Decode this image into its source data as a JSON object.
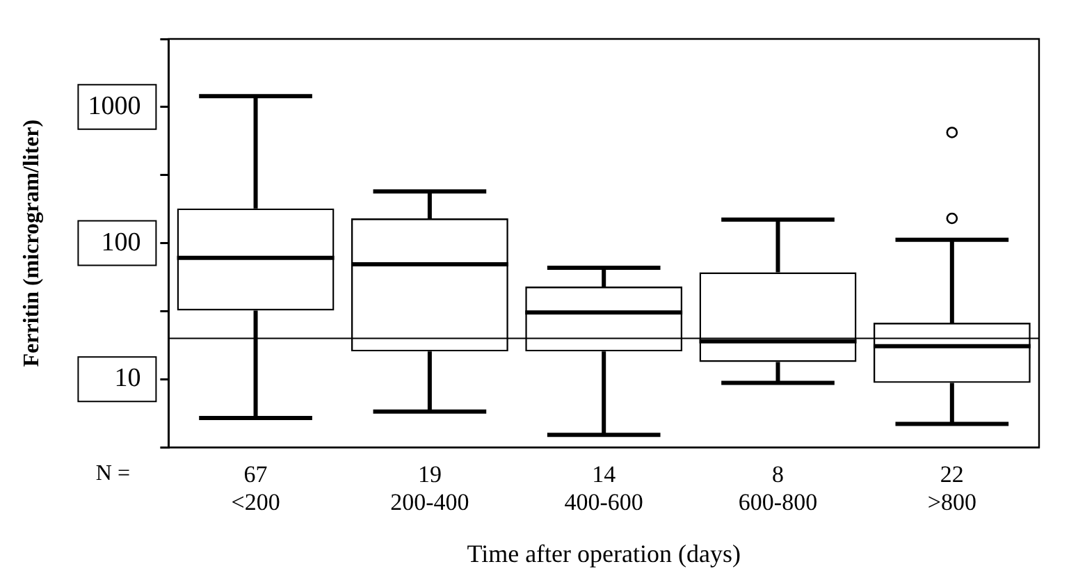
{
  "chart_data": {
    "type": "box",
    "xlabel": "Time after operation (days)",
    "ylabel": "Ferritin (microgram/liter)",
    "categories": [
      "67\n<200",
      "19\n200-400",
      "14\n400-600",
      "8\n600-800",
      "22\n>800"
    ],
    "boxes": [
      {
        "low": 5.2,
        "q1": 32,
        "median": 78,
        "q3": 180,
        "high": 1200
      },
      {
        "low": 5.8,
        "q1": 16,
        "median": 70,
        "q3": 152,
        "high": 240
      },
      {
        "low": 3.9,
        "q1": 16,
        "median": 31,
        "q3": 48,
        "high": 66
      },
      {
        "low": 9.4,
        "q1": 13.4,
        "median": 19,
        "q3": 61,
        "high": 149
      },
      {
        "low": 4.7,
        "q1": 9.4,
        "median": 17.5,
        "q3": 26,
        "high": 106,
        "outliers": [
          152,
          650
        ]
      }
    ],
    "log": true,
    "ylim": [
      3.162,
      3162
    ],
    "yticks": [
      {
        "value": 3.162,
        "label": null
      },
      10,
      {
        "value": 31.62,
        "label": null
      },
      100,
      {
        "value": 316.2,
        "label": null
      },
      1000,
      {
        "value": 3162,
        "label": null
      }
    ],
    "ref_lines": [
      {
        "axis": "y",
        "value": 20
      }
    ],
    "annotations": [
      "N ="
    ],
    "grid": false,
    "legend": false
  }
}
